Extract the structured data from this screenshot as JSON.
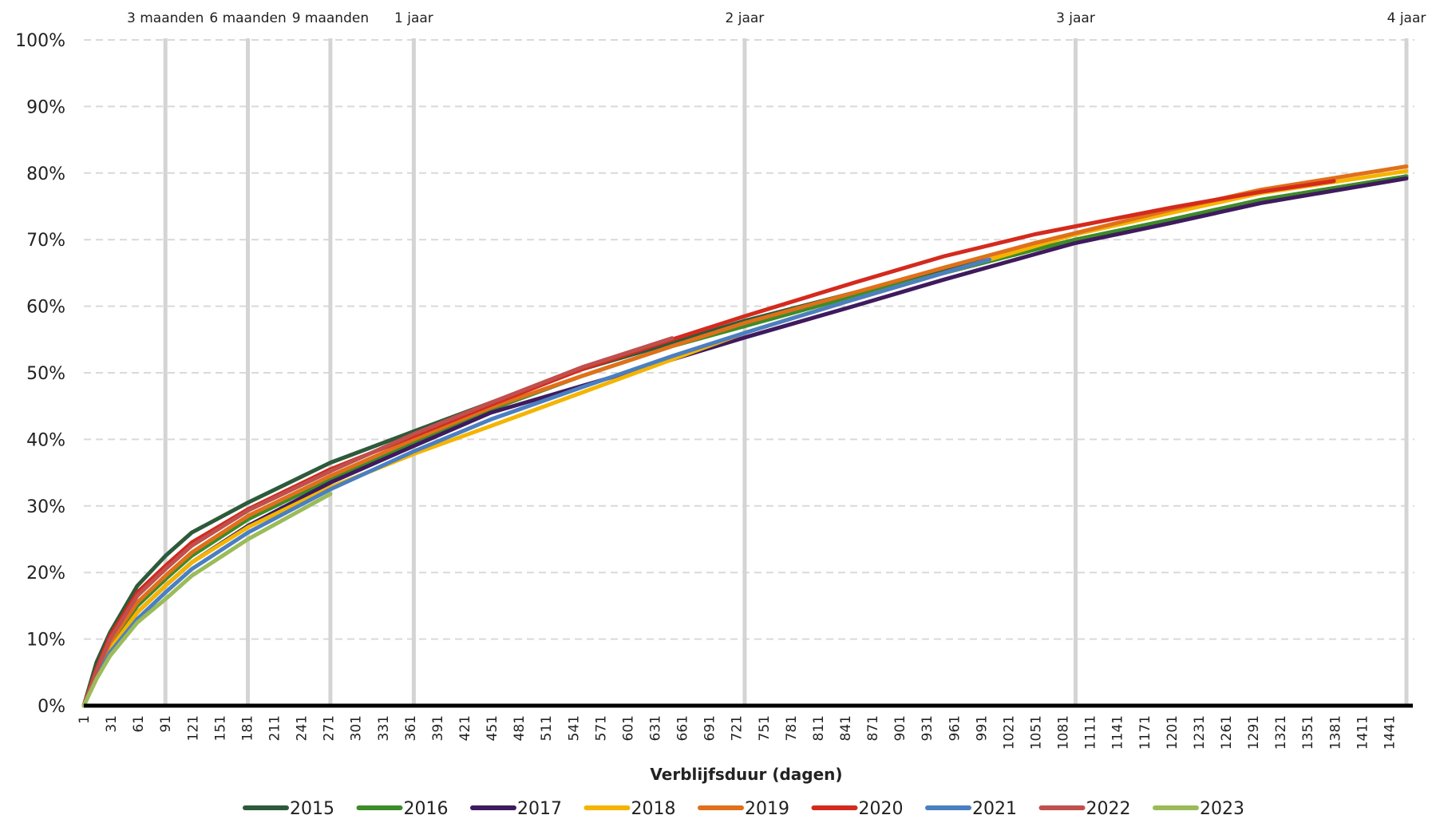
{
  "chart_data": {
    "type": "line",
    "xlabel": "Verblijfsduur (dagen)",
    "ylabel": "",
    "xlim": [
      1,
      1460
    ],
    "ylim": [
      0,
      100
    ],
    "y_ticks": [
      0,
      10,
      20,
      30,
      40,
      50,
      60,
      70,
      80,
      90,
      100
    ],
    "y_tick_labels": [
      "0%",
      "10%",
      "20%",
      "30%",
      "40%",
      "50%",
      "60%",
      "70%",
      "80%",
      "90%",
      "100%"
    ],
    "x_ticks": [
      1,
      31,
      61,
      91,
      121,
      151,
      181,
      211,
      241,
      271,
      301,
      331,
      361,
      391,
      421,
      451,
      481,
      511,
      541,
      571,
      601,
      631,
      661,
      691,
      721,
      751,
      781,
      811,
      841,
      871,
      901,
      931,
      961,
      991,
      1021,
      1051,
      1081,
      1111,
      1141,
      1171,
      1201,
      1231,
      1261,
      1291,
      1321,
      1351,
      1381,
      1411,
      1441
    ],
    "grid": "horizontal dashed",
    "legend_position": "bottom",
    "reference_lines": [
      {
        "x": 91,
        "label": "3 maanden"
      },
      {
        "x": 182,
        "label": "6 maanden"
      },
      {
        "x": 273,
        "label": "9 maanden"
      },
      {
        "x": 365,
        "label": "1 jaar"
      },
      {
        "x": 730,
        "label": "2 jaar"
      },
      {
        "x": 1095,
        "label": "3 jaar"
      },
      {
        "x": 1460,
        "label": "4 jaar"
      }
    ],
    "series": [
      {
        "name": "2015",
        "color": "#2d5a3a",
        "x": [
          1,
          15,
          30,
          60,
          91,
          120,
          182,
          273,
          365,
          450,
          550,
          650,
          730,
          850,
          950,
          1050,
          1095,
          1200,
          1300,
          1460
        ],
        "y": [
          0,
          6.5,
          11,
          18,
          22.5,
          26,
          30.5,
          36.5,
          41.2,
          45.5,
          50.5,
          54.5,
          57.8,
          62,
          65.5,
          68.5,
          70,
          73,
          76,
          79.5
        ]
      },
      {
        "name": "2016",
        "color": "#3c8c28",
        "x": [
          1,
          15,
          30,
          60,
          91,
          120,
          182,
          273,
          365,
          450,
          550,
          650,
          730,
          850,
          950,
          1050,
          1095,
          1200,
          1300,
          1460
        ],
        "y": [
          0,
          5,
          9,
          15,
          19,
          22.5,
          28,
          34,
          39.5,
          44.5,
          49.5,
          54,
          57,
          61.5,
          65,
          68.5,
          70,
          73,
          76,
          79.5
        ]
      },
      {
        "name": "2017",
        "color": "#3f1a5e",
        "x": [
          1,
          15,
          30,
          60,
          91,
          120,
          182,
          273,
          365,
          450,
          550,
          650,
          730,
          850,
          950,
          1050,
          1095,
          1200,
          1300,
          1460
        ],
        "y": [
          0,
          4.5,
          8.5,
          14,
          18,
          21.5,
          27,
          33.5,
          39,
          44,
          48,
          52,
          55.3,
          60,
          64,
          67.8,
          69.5,
          72.5,
          75.5,
          79.2
        ]
      },
      {
        "name": "2018",
        "color": "#f5b400",
        "x": [
          1,
          15,
          30,
          60,
          91,
          120,
          182,
          273,
          365,
          450,
          550,
          650,
          730,
          850,
          950,
          1050,
          1095,
          1200,
          1300,
          1460
        ],
        "y": [
          0,
          4.5,
          8.5,
          14,
          18,
          21.5,
          26.8,
          32.8,
          37.8,
          42,
          47,
          52,
          56,
          61,
          65,
          69,
          70.8,
          74,
          77,
          80.3
        ]
      },
      {
        "name": "2019",
        "color": "#e0701a",
        "x": [
          1,
          15,
          30,
          60,
          91,
          120,
          182,
          273,
          365,
          450,
          550,
          650,
          730,
          850,
          950,
          1050,
          1095,
          1200,
          1300,
          1460
        ],
        "y": [
          0,
          5,
          9.5,
          15.5,
          19.5,
          23,
          28.5,
          34.5,
          40,
          44.8,
          49.5,
          54,
          57.5,
          62,
          65.8,
          69.5,
          71,
          74.5,
          77.5,
          81
        ]
      },
      {
        "name": "2020",
        "color": "#d42a1e",
        "x": [
          1,
          15,
          30,
          60,
          91,
          120,
          182,
          273,
          365,
          450,
          550,
          650,
          730,
          850,
          950,
          1050,
          1095,
          1200,
          1300,
          1380
        ],
        "y": [
          0,
          5.5,
          10.5,
          17,
          21,
          24.5,
          29.5,
          35.5,
          40.5,
          45.2,
          50.5,
          55,
          58.5,
          63.5,
          67.5,
          70.8,
          72,
          74.8,
          77.2,
          78.8
        ]
      },
      {
        "name": "2021",
        "color": "#4a7fc1",
        "x": [
          1,
          15,
          30,
          60,
          91,
          120,
          182,
          273,
          365,
          450,
          550,
          650,
          730,
          850,
          950,
          1000
        ],
        "y": [
          0,
          4.2,
          8,
          13,
          17,
          20.5,
          26,
          32.5,
          38.2,
          43,
          47.8,
          52.5,
          56,
          61,
          65,
          67
        ]
      },
      {
        "name": "2022",
        "color": "#c0504d",
        "x": [
          1,
          15,
          30,
          60,
          91,
          120,
          182,
          273,
          365,
          450,
          550,
          650
        ],
        "y": [
          0,
          5.2,
          10,
          16.5,
          20.5,
          24,
          29.3,
          35.2,
          40.8,
          45.5,
          50.8,
          55.2
        ]
      },
      {
        "name": "2023",
        "color": "#9bbb59",
        "x": [
          1,
          15,
          30,
          60,
          91,
          120,
          182,
          273
        ],
        "y": [
          0,
          4,
          7.5,
          12.5,
          16,
          19.5,
          25,
          31.8
        ]
      }
    ]
  }
}
